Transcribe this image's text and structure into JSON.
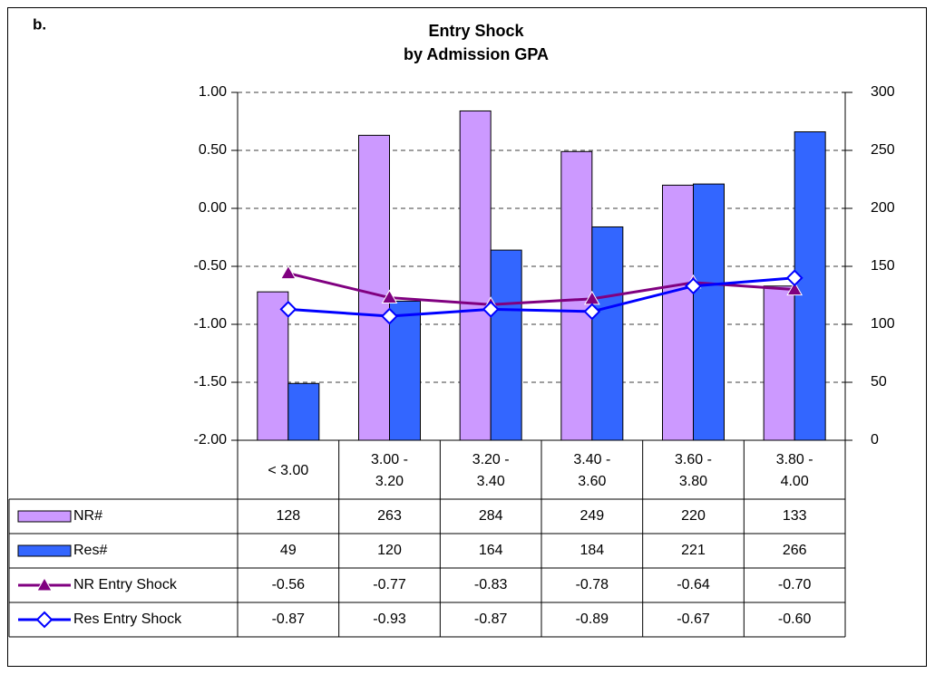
{
  "chart_data": {
    "type": "combo",
    "panel_label": "b.",
    "title": "Entry Shock",
    "subtitle": "by Admission GPA",
    "categories": [
      "< 3.00",
      "3.00 - 3.20",
      "3.20 - 3.40",
      "3.40 - 3.60",
      "3.60 - 3.80",
      "3.80 - 4.00"
    ],
    "series": [
      {
        "name": "NR#",
        "type": "bar",
        "axis": "y2",
        "color": "#cc99ff",
        "values": [
          128,
          263,
          284,
          249,
          220,
          133
        ]
      },
      {
        "name": "Res#",
        "type": "bar",
        "axis": "y2",
        "color": "#3366ff",
        "values": [
          49,
          120,
          164,
          184,
          221,
          266
        ]
      },
      {
        "name": "NR Entry Shock",
        "type": "line",
        "marker": "triangle",
        "color": "#800080",
        "values": [
          -0.56,
          -0.77,
          -0.83,
          -0.78,
          -0.64,
          -0.7
        ],
        "value_labels": [
          "-0.56",
          "-0.77",
          "-0.83",
          "-0.78",
          "-0.64",
          "-0.70"
        ]
      },
      {
        "name": "Res Entry Shock",
        "type": "line",
        "marker": "diamond",
        "color": "#0000ff",
        "values": [
          -0.87,
          -0.93,
          -0.87,
          -0.89,
          -0.67,
          -0.6
        ],
        "value_labels": [
          "-0.87",
          "-0.93",
          "-0.87",
          "-0.89",
          "-0.67",
          "-0.60"
        ]
      }
    ],
    "ylim": [
      -2,
      1
    ],
    "yticks": [
      {
        "value": -2,
        "label": "-2.00"
      },
      {
        "value": -1.5,
        "label": "-1.50"
      },
      {
        "value": -1,
        "label": "-1.00"
      },
      {
        "value": -0.5,
        "label": "-0.50"
      },
      {
        "value": 0,
        "label": "0.00"
      },
      {
        "value": 0.5,
        "label": "0.50"
      },
      {
        "value": 1,
        "label": "1.00"
      }
    ],
    "y2lim": [
      0,
      300
    ],
    "y2ticks": [
      0,
      50,
      100,
      150,
      200,
      250,
      300
    ],
    "grid": true,
    "data_table": true
  }
}
